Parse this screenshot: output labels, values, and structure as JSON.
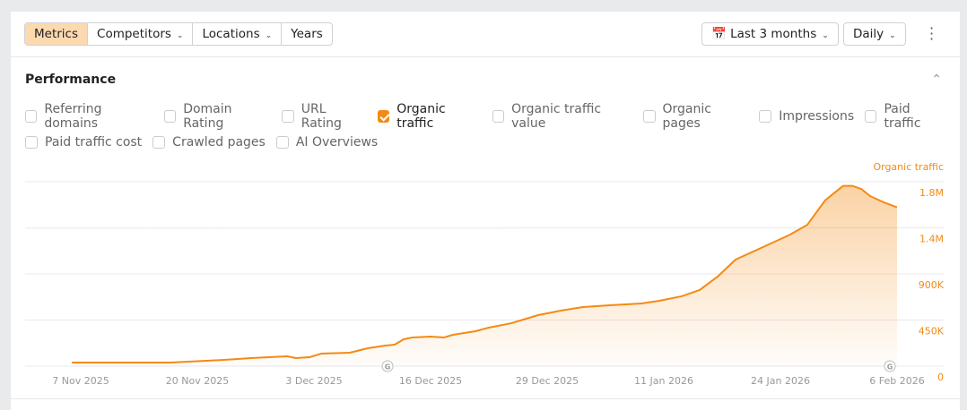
{
  "toolbar": {
    "tabs": [
      {
        "label": "Metrics",
        "active": true
      },
      {
        "label": "Competitors",
        "dropdown": true
      },
      {
        "label": "Locations",
        "dropdown": true
      },
      {
        "label": "Years"
      }
    ],
    "date_range": "Last 3 months",
    "granularity": "Daily"
  },
  "section": {
    "title": "Performance"
  },
  "metrics": [
    {
      "label": "Referring domains",
      "checked": false
    },
    {
      "label": "Domain Rating",
      "checked": false
    },
    {
      "label": "URL Rating",
      "checked": false
    },
    {
      "label": "Organic traffic",
      "checked": true
    },
    {
      "label": "Organic traffic value",
      "checked": false
    },
    {
      "label": "Organic pages",
      "checked": false
    },
    {
      "label": "Impressions",
      "checked": false
    },
    {
      "label": "Paid traffic",
      "checked": false
    },
    {
      "label": "Paid traffic cost",
      "checked": false
    },
    {
      "label": "Crawled pages",
      "checked": false
    },
    {
      "label": "AI Overviews",
      "checked": false
    }
  ],
  "chart_data": {
    "type": "area",
    "series_name": "Organic traffic",
    "color": "#f48a13",
    "x_ticks": [
      "7 Nov 2025",
      "20 Nov 2025",
      "3 Dec 2025",
      "16 Dec 2025",
      "29 Dec 2025",
      "11 Jan 2026",
      "24 Jan 2026",
      "6 Feb 2026"
    ],
    "y_ticks": [
      {
        "v": 0,
        "label": "0"
      },
      {
        "v": 450000,
        "label": "450K"
      },
      {
        "v": 900000,
        "label": "900K"
      },
      {
        "v": 1350000,
        "label": "1.4M"
      },
      {
        "v": 1800000,
        "label": "1.8M"
      }
    ],
    "ylim": [
      0,
      1800000
    ],
    "x_unit": "days since 6 Nov 2025",
    "xlim": [
      0,
      92
    ],
    "points": [
      [
        0,
        35000
      ],
      [
        11,
        35000
      ],
      [
        17,
        61000
      ],
      [
        20,
        79000
      ],
      [
        24,
        96000
      ],
      [
        25,
        79000
      ],
      [
        26.5,
        87000
      ],
      [
        27.8,
        122000
      ],
      [
        31,
        131000
      ],
      [
        33,
        175000
      ],
      [
        35,
        201000
      ],
      [
        36,
        210000
      ],
      [
        37,
        262000
      ],
      [
        38,
        280000
      ],
      [
        40,
        288000
      ],
      [
        41.5,
        280000
      ],
      [
        42.5,
        306000
      ],
      [
        45,
        341000
      ],
      [
        46.5,
        376000
      ],
      [
        49,
        419000
      ],
      [
        52,
        498000
      ],
      [
        54.5,
        542000
      ],
      [
        57,
        577000
      ],
      [
        60,
        594000
      ],
      [
        63.5,
        612000
      ],
      [
        65.5,
        638000
      ],
      [
        68,
        682000
      ],
      [
        70,
        743000
      ],
      [
        72,
        874000
      ],
      [
        74,
        1040000
      ],
      [
        77,
        1160000
      ],
      [
        80,
        1280000
      ],
      [
        82,
        1380000
      ],
      [
        83,
        1500000
      ],
      [
        84,
        1620000
      ],
      [
        85,
        1690000
      ],
      [
        86,
        1760000
      ],
      [
        87,
        1760000
      ],
      [
        88,
        1730000
      ],
      [
        89,
        1660000
      ],
      [
        90.5,
        1600000
      ],
      [
        92,
        1550000
      ]
    ],
    "annotations": [
      {
        "day": 35,
        "label": "G"
      },
      {
        "day": 91,
        "label": "G"
      }
    ]
  }
}
